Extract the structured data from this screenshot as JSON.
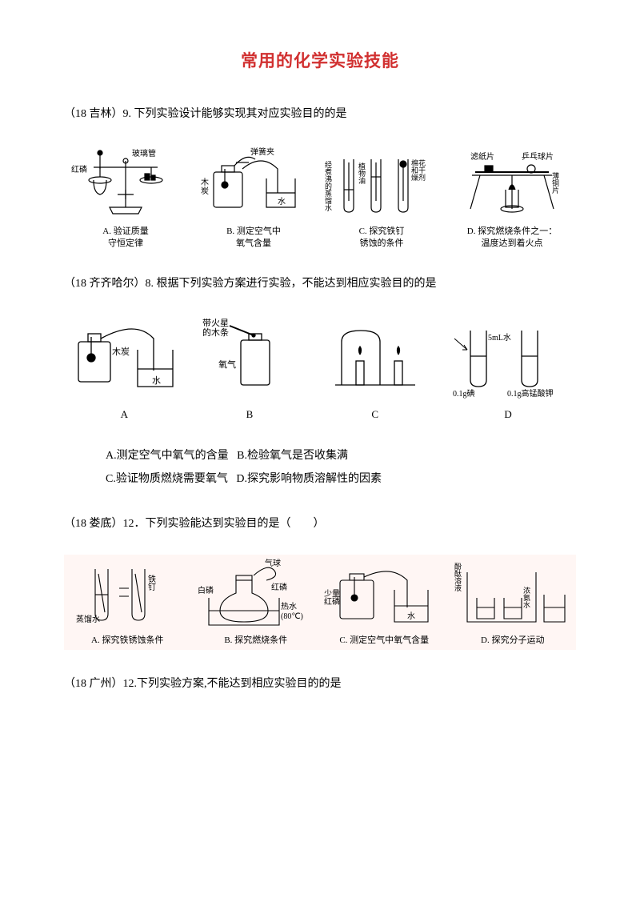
{
  "doc": {
    "title_text": "常用的化学实验技能",
    "title_color": "#d13030"
  },
  "q1": {
    "stem": "（18 吉林）9. 下列实验设计能够实现其对应实验目的的是",
    "figs": {
      "a": {
        "labels": {
          "top1": "玻璃管",
          "top2": "红磷"
        },
        "caption": "A. 验证质量\n守恒定律"
      },
      "b": {
        "labels": {
          "top1": "弹簧夹",
          "mid1": "木炭",
          "mid2": "水"
        },
        "caption": "B. 测定空气中\n氧气含量"
      },
      "c": {
        "labels": {
          "l1": "经",
          "l2": "煮",
          "l3": "沸",
          "l4": "的",
          "l5": "蒸",
          "l6": "馏",
          "l7": "水",
          "m1": "植",
          "m2": "物",
          "m3": "油",
          "r1": "棉花",
          "r2": "和干",
          "r3": "燥剂"
        },
        "caption": "C. 探究铁钉\n锈蚀的条件"
      },
      "d": {
        "labels": {
          "top1": "滤纸片",
          "top2": "乒乓球片",
          "mid": "薄铜片"
        },
        "caption": "D. 探究燃烧条件之一：\n温度达到着火点"
      }
    }
  },
  "q2": {
    "stem": "（18 齐齐哈尔）8. 根据下列实验方案进行实验，不能达到相应实验目的的是",
    "figs": {
      "a": {
        "labels": {
          "l1": "木炭",
          "l2": "水"
        },
        "alpha": "A"
      },
      "b": {
        "labels": {
          "l1": "带火星",
          "l2": "的木条",
          "l3": "氧气"
        },
        "alpha": "B"
      },
      "c": {
        "alpha": "C"
      },
      "d": {
        "labels": {
          "l1": "5mL水",
          "l2": "0.1g碘",
          "l3": "0.1g高锰酸钾"
        },
        "alpha": "D"
      }
    },
    "options": {
      "a": "A.测定空气中氧气的含量",
      "b": "B.检验氧气是否收集满",
      "c": "C.验证物质燃烧需要氧气",
      "d": "D.探究影响物质溶解性的因素"
    }
  },
  "q3": {
    "stem": "（18 娄底）12．下列实验能达到实验目的是（　　）",
    "figs": {
      "a": {
        "labels": {
          "l1": "铁钉",
          "l2": "蒸馏水"
        },
        "caption": "A. 探究铁锈蚀条件"
      },
      "b": {
        "labels": {
          "l1": "气球",
          "l2": "红磷",
          "l3": "白磷",
          "l4": "热水",
          "l5": "(80℃)"
        },
        "caption": "B. 探究燃烧条件"
      },
      "c": {
        "labels": {
          "l1": "少量",
          "l2": "红磷",
          "l3": "水"
        },
        "caption": "C. 测定空气中氧气含量"
      },
      "d": {
        "labels": {
          "l1": "酚",
          "l2": "酞",
          "l3": "溶",
          "l4": "液",
          "l5": "浓",
          "l6": "氨",
          "l7": "水"
        },
        "caption": "D. 探究分子运动"
      }
    }
  },
  "q4": {
    "stem": "（18 广州）12.下列实验方案,不能达到相应实验目的的是"
  },
  "style": {
    "stroke": "#000000",
    "fig_font_size": 10,
    "highlight": "#fff0ee"
  }
}
